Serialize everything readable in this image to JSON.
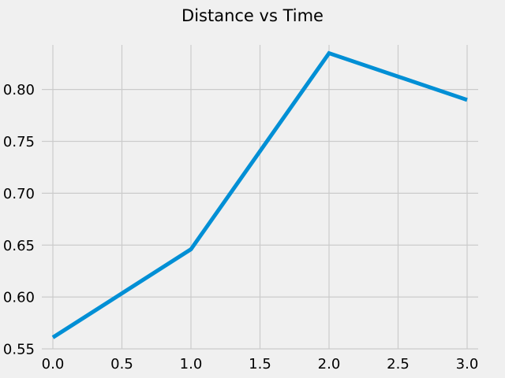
{
  "chart_data": {
    "type": "line",
    "title": "Distance vs Time",
    "xlabel": "",
    "ylabel": "",
    "x": [
      0.0,
      1.0,
      2.0,
      3.0
    ],
    "series": [
      {
        "values": [
          0.561,
          0.646,
          0.835,
          0.79
        ],
        "color": "#008fd5"
      }
    ],
    "xlim": [
      -0.08,
      3.08
    ],
    "ylim": [
      0.55,
      0.843
    ],
    "x_ticks": [
      0.0,
      0.5,
      1.0,
      1.5,
      2.0,
      2.5,
      3.0
    ],
    "x_tick_labels": [
      "0.0",
      "0.5",
      "1.0",
      "1.5",
      "2.0",
      "2.5",
      "3.0"
    ],
    "y_ticks": [
      0.55,
      0.6,
      0.65,
      0.7,
      0.75,
      0.8
    ],
    "y_tick_labels": [
      "0.55",
      "0.60",
      "0.65",
      "0.70",
      "0.75",
      "0.80"
    ],
    "grid": true,
    "legend": "none",
    "background_color": "#f0f0f0",
    "grid_color": "#cbcbcb"
  }
}
